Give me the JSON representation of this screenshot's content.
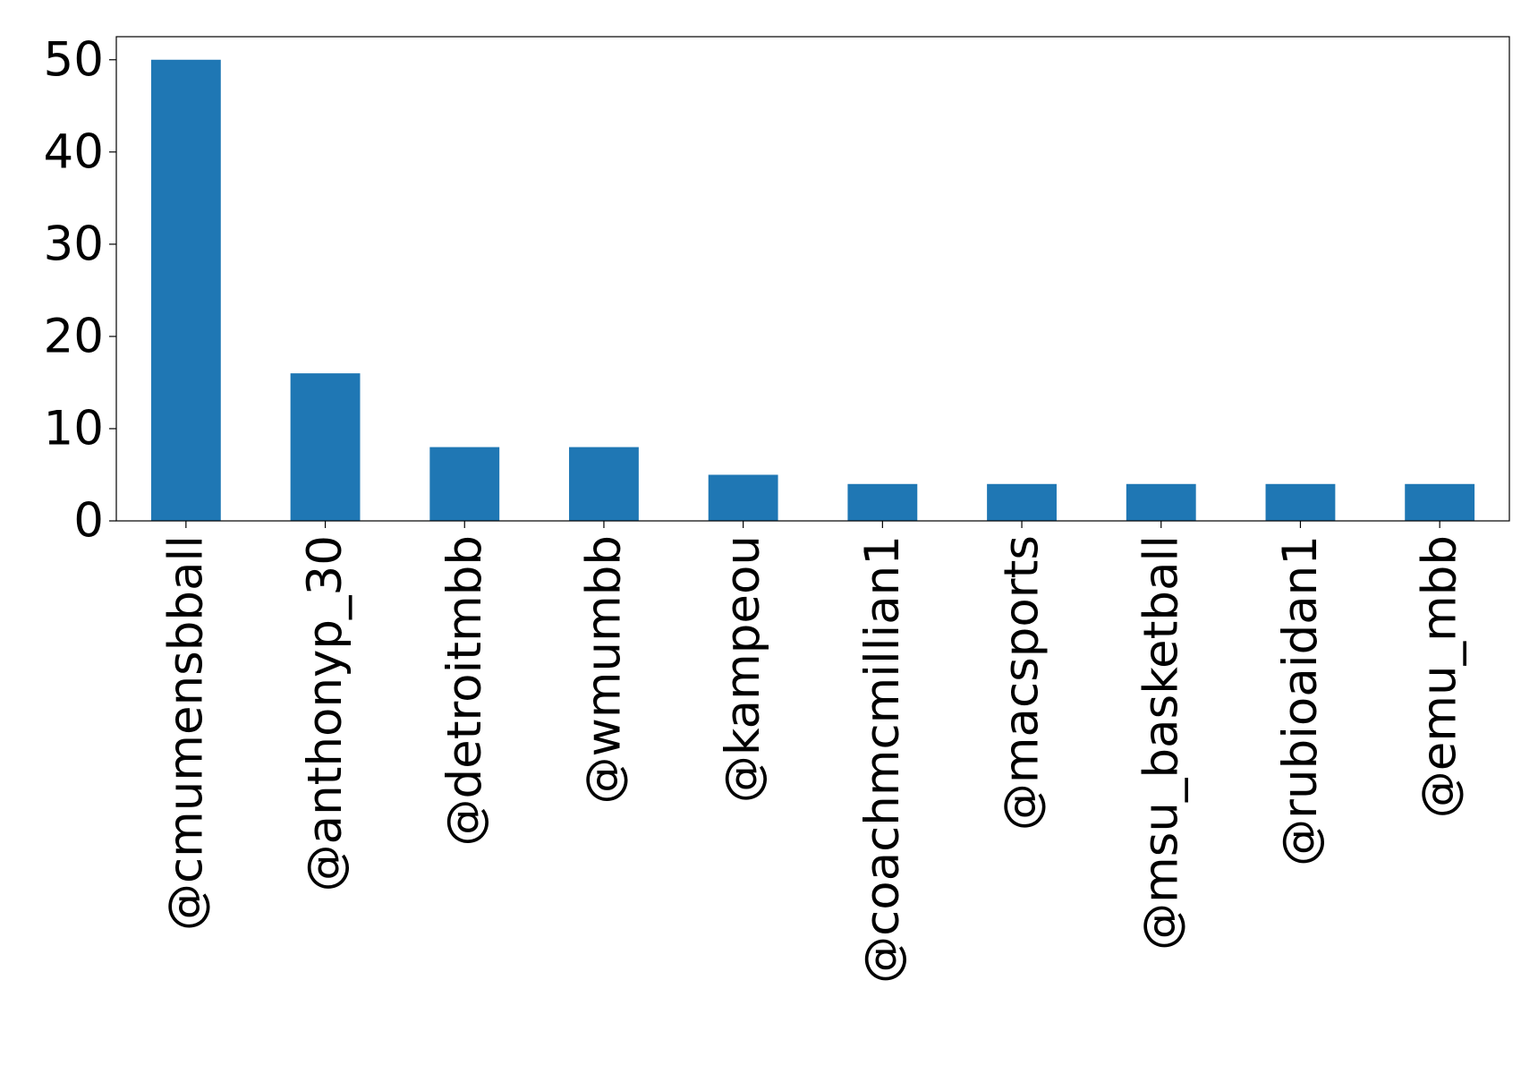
{
  "chart_data": {
    "type": "bar",
    "categories": [
      "@cmumensbball",
      "@anthonyp_30",
      "@detroitmbb",
      "@wmumbb",
      "@kampeou",
      "@coachmcmillian1",
      "@macsports",
      "@msu_basketball",
      "@rubioaidan1",
      "@emu_mbb"
    ],
    "values": [
      50,
      16,
      8,
      8,
      5,
      4,
      4,
      4,
      4,
      4
    ],
    "color": "#1f77b4",
    "ylim": [
      0,
      52.5
    ],
    "yticks": [
      0,
      10,
      20,
      30,
      40,
      50
    ],
    "grid": false
  }
}
